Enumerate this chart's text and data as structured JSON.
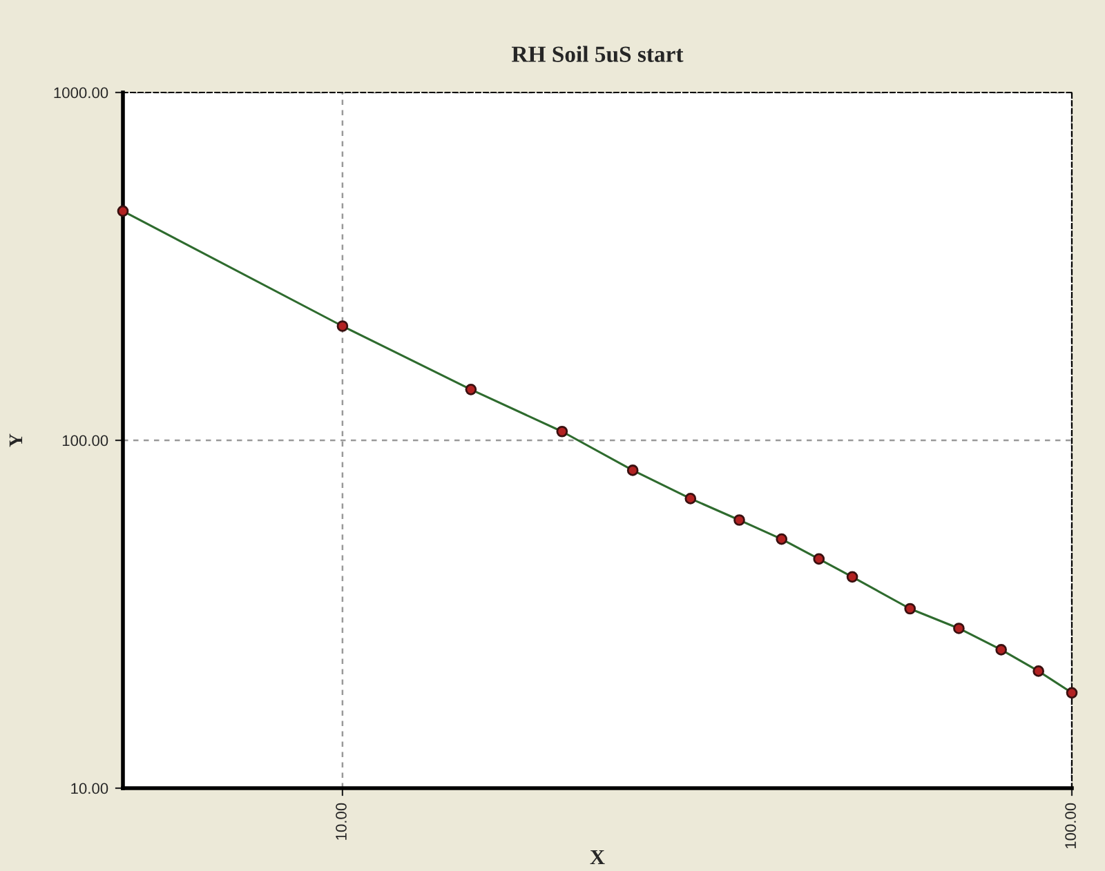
{
  "chart_data": {
    "type": "line",
    "title": "RH Soil 5uS start",
    "xlabel": "X",
    "ylabel": "Y",
    "log": "xy",
    "xlim": [
      5,
      100
    ],
    "ylim": [
      10,
      1000
    ],
    "xticks": [
      {
        "value": 10,
        "label": "10.00"
      },
      {
        "value": 100,
        "label": "100.00"
      }
    ],
    "yticks": [
      {
        "value": 10,
        "label": "10.00"
      },
      {
        "value": 100,
        "label": "100.00"
      },
      {
        "value": 1000,
        "label": "1000.00"
      }
    ],
    "grid": true,
    "marker": "circle",
    "line_style": "solid",
    "series": [
      {
        "color": "#2e6b2e",
        "x": [
          5,
          10,
          15,
          20,
          25,
          30,
          35,
          40,
          45,
          50,
          60,
          70,
          80,
          90,
          100
        ],
        "values": [
          456,
          213,
          140,
          106,
          82,
          68,
          59,
          52,
          45.6,
          40.5,
          32.8,
          28.8,
          25,
          21.7,
          18.8
        ]
      }
    ]
  }
}
